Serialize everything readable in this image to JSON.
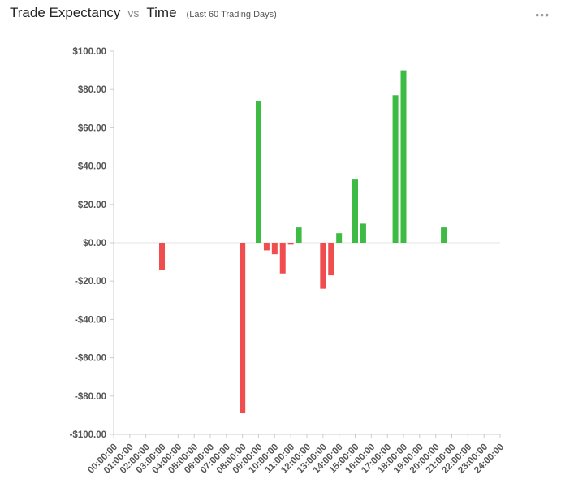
{
  "header": {
    "title": "Trade Expectancy",
    "vs": "vs",
    "title2": "Time",
    "subtitle": "(Last 60 Trading Days)",
    "menu_icon": "more-horizontal-icon"
  },
  "colors": {
    "positive": "#3dbb45",
    "negative": "#f04d4f",
    "grid": "#e6e6e6",
    "axis": "#cccccc",
    "tick_text": "#555555"
  },
  "chart_data": {
    "type": "bar",
    "title": "Trade Expectancy vs Time",
    "subtitle": "(Last 60 Trading Days)",
    "xlabel": "",
    "ylabel": "",
    "ylim": [
      -100,
      100
    ],
    "y_ticks": [
      -100,
      -80,
      -60,
      -40,
      -20,
      0,
      20,
      40,
      60,
      80,
      100
    ],
    "y_tick_labels": [
      "-$100.00",
      "-$80.00",
      "-$60.00",
      "-$40.00",
      "-$20.00",
      "$0.00",
      "$20.00",
      "$40.00",
      "$60.00",
      "$80.00",
      "$100.00"
    ],
    "x_tick_labels": [
      "00:00:00",
      "01:00:00",
      "02:00:00",
      "03:00:00",
      "04:00:00",
      "05:00:00",
      "06:00:00",
      "07:00:00",
      "08:00:00",
      "09:00:00",
      "10:00:00",
      "11:00:00",
      "12:00:00",
      "13:00:00",
      "14:00:00",
      "15:00:00",
      "16:00:00",
      "17:00:00",
      "18:00:00",
      "19:00:00",
      "20:00:00",
      "21:00:00",
      "22:00:00",
      "23:00:00",
      "24:00:00"
    ],
    "x_range": [
      0,
      24
    ],
    "grid": "zero line only",
    "bars": [
      {
        "x": 3.0,
        "value": -14
      },
      {
        "x": 8.0,
        "value": -89
      },
      {
        "x": 9.0,
        "value": 74
      },
      {
        "x": 9.5,
        "value": -4
      },
      {
        "x": 10.0,
        "value": -6
      },
      {
        "x": 10.5,
        "value": -16
      },
      {
        "x": 11.0,
        "value": -1
      },
      {
        "x": 11.5,
        "value": 8
      },
      {
        "x": 13.0,
        "value": -24
      },
      {
        "x": 13.5,
        "value": -17
      },
      {
        "x": 14.0,
        "value": 5
      },
      {
        "x": 15.0,
        "value": 33
      },
      {
        "x": 15.5,
        "value": 10
      },
      {
        "x": 17.5,
        "value": 77
      },
      {
        "x": 18.0,
        "value": 90
      },
      {
        "x": 20.5,
        "value": 8
      }
    ]
  }
}
